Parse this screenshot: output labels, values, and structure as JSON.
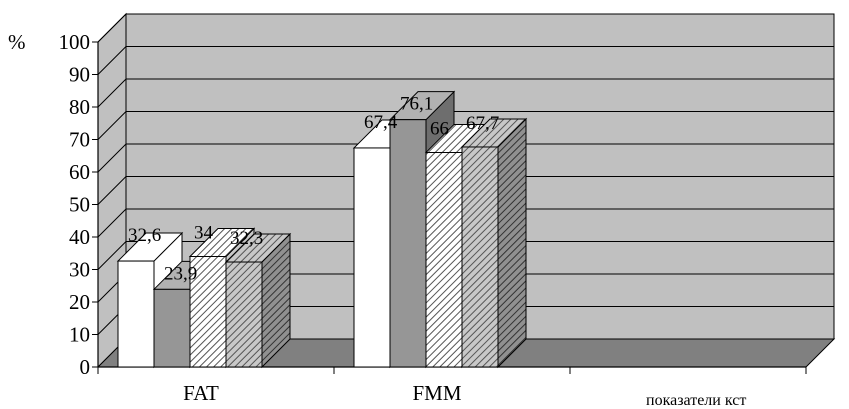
{
  "chart_data": {
    "type": "bar",
    "style": "3d-clustered-column",
    "ylabel": "%",
    "xlabel": "показатели кст",
    "ylim": [
      0,
      100
    ],
    "yticks": [
      0,
      10,
      20,
      30,
      40,
      50,
      60,
      70,
      80,
      90,
      100
    ],
    "grid": true,
    "categories": [
      "FAT",
      "FMM",
      ""
    ],
    "series": [
      {
        "values": [
          32.6,
          67.4,
          null
        ],
        "fill": "white"
      },
      {
        "values": [
          23.9,
          76.1,
          null
        ],
        "fill": "solid-gray"
      },
      {
        "values": [
          34,
          66,
          null
        ],
        "fill": "white-hatched"
      },
      {
        "values": [
          32.3,
          67.7,
          null
        ],
        "fill": "gray-hatched"
      }
    ],
    "data_labels": {
      "FAT": [
        "32,6",
        "23,9",
        "34",
        "32,3"
      ],
      "FMM": [
        "67,4",
        "76,1",
        "66",
        "67,7"
      ]
    },
    "colors": {
      "back_wall": "#c0c0c0",
      "floor": "#808080",
      "side_wall": "#c0c0c0",
      "bar_white": "#ffffff",
      "bar_gray": "#969696",
      "bar_gray_top": "#b2b2b2",
      "bar_gray_side": "#6e6e6e"
    }
  }
}
